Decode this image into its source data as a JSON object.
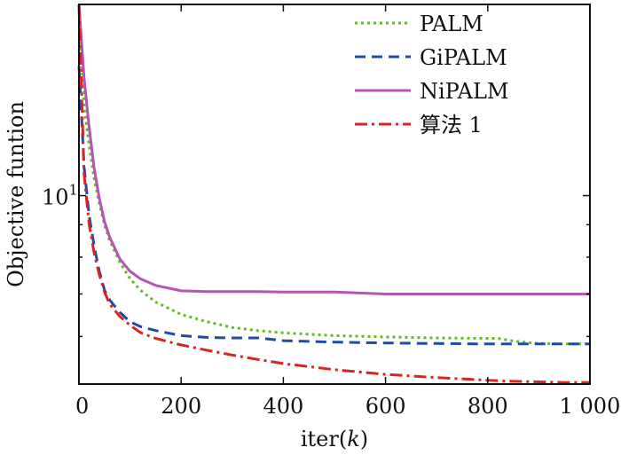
{
  "chart_data": {
    "type": "line",
    "title": "",
    "xlabel": "iter(k)",
    "ylabel": "Objective funtion",
    "xlim": [
      0,
      1000
    ],
    "ylim": [
      5.05,
      20
    ],
    "yscale": "log",
    "grid": false,
    "legend_position": "top-right",
    "x_ticks": [
      0,
      200,
      400,
      600,
      800,
      1000
    ],
    "x_tick_labels": [
      "0",
      "200",
      "400",
      "600",
      "800",
      "1 000"
    ],
    "y_tick_label": "10",
    "y_tick_label_exp": "1",
    "y_tick_value": 10,
    "x": [
      0,
      10,
      20,
      30,
      40,
      50,
      60,
      80,
      100,
      120,
      150,
      200,
      250,
      300,
      350,
      400,
      500,
      600,
      700,
      800,
      820,
      850,
      900,
      950,
      1000
    ],
    "series": [
      {
        "name": "PALM",
        "color": "#66bb22",
        "dash": "dotted",
        "values": [
          20,
          13.8,
          12.0,
          10.6,
          9.7,
          9.0,
          8.5,
          7.85,
          7.4,
          7.1,
          6.8,
          6.5,
          6.33,
          6.2,
          6.13,
          6.08,
          6.02,
          5.99,
          5.97,
          5.96,
          5.96,
          5.9,
          5.85,
          5.84,
          5.84
        ]
      },
      {
        "name": "GiPALM",
        "color": "#1f4aa8",
        "dash": "dashed",
        "values": [
          16,
          11.1,
          9.3,
          8.3,
          7.6,
          7.1,
          6.85,
          6.55,
          6.33,
          6.22,
          6.13,
          6.02,
          5.98,
          5.97,
          5.97,
          5.91,
          5.88,
          5.86,
          5.85,
          5.84,
          5.84,
          5.84,
          5.84,
          5.84,
          5.84
        ]
      },
      {
        "name": "NiPALM",
        "color": "#b455b4",
        "dash": "solid",
        "values": [
          20,
          15.3,
          12.8,
          11.0,
          9.9,
          9.1,
          8.6,
          7.95,
          7.6,
          7.4,
          7.22,
          7.08,
          7.06,
          7.06,
          7.06,
          7.05,
          7.05,
          7.0,
          7.0,
          7.0,
          7.0,
          7.0,
          7.0,
          7.0,
          7.0
        ]
      },
      {
        "name": "算法 1",
        "color": "#dd2222",
        "dash": "dashdot",
        "values": [
          20,
          10.8,
          9.0,
          8.1,
          7.5,
          7.05,
          6.75,
          6.45,
          6.25,
          6.09,
          5.96,
          5.82,
          5.71,
          5.61,
          5.52,
          5.44,
          5.32,
          5.23,
          5.17,
          5.12,
          5.11,
          5.1,
          5.09,
          5.08,
          5.08
        ]
      }
    ]
  }
}
